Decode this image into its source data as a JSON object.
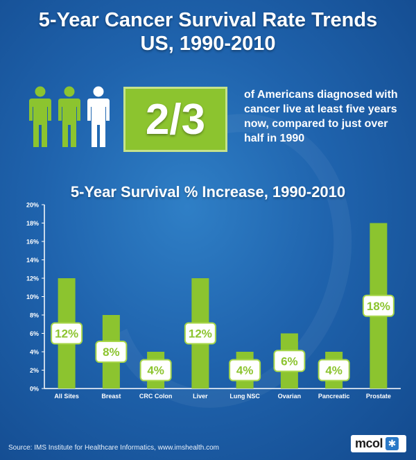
{
  "header": {
    "title_line1": "5-Year Cancer Survival Rate Trends",
    "title_line2": "US, 1990-2010"
  },
  "stat": {
    "fraction": "2/3",
    "people_icons": [
      "person-icon",
      "person-icon",
      "person-icon"
    ],
    "highlighted_people": 2,
    "text": "of Americans diagnosed with cancer live at least five years now, compared to just over half in 1990"
  },
  "colors": {
    "accent_green": "#8cc42f",
    "label_border_green": "#a7d64a",
    "background_blue": "#1f63ad"
  },
  "chart_data": {
    "type": "bar",
    "title": "5-Year Survival % Increase, 1990-2010",
    "categories": [
      "All Sites",
      "Breast",
      "CRC Colon",
      "Liver",
      "Lung NSC",
      "Ovarian",
      "Pancreatic",
      "Prostate"
    ],
    "values": [
      12,
      8,
      4,
      12,
      4,
      6,
      4,
      18
    ],
    "data_labels": [
      "12%",
      "8%",
      "4%",
      "12%",
      "4%",
      "6%",
      "4%",
      "18%"
    ],
    "yticks": [
      "0%",
      "2%",
      "4%",
      "6%",
      "8%",
      "10%",
      "12%",
      "14%",
      "16%",
      "18%",
      "20%"
    ],
    "ylim": [
      0,
      20
    ],
    "xlabel": "",
    "ylabel": "",
    "grid": false
  },
  "footer": {
    "source": "Source:  IMS Institute for Healthcare Informatics, www.imshealth.com",
    "logo_text": "mcol",
    "logo_icon": "snowflake-icon"
  }
}
